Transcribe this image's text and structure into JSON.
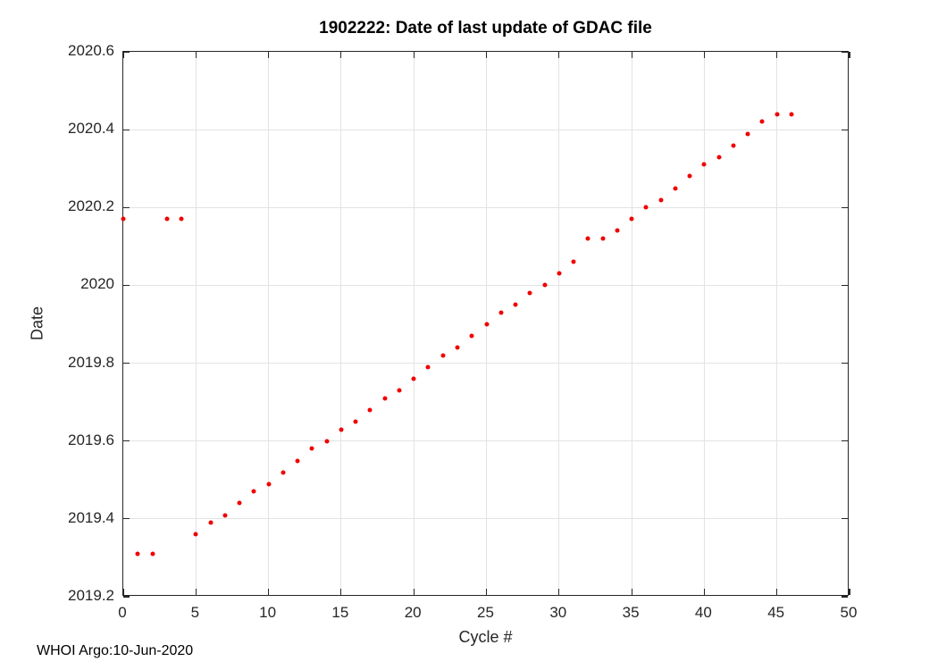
{
  "footer": "WHOI Argo:10-Jun-2020",
  "chart_data": {
    "type": "scatter",
    "title": "1902222: Date of last update of GDAC file",
    "xlabel": "Cycle #",
    "ylabel": "Date",
    "xlim": [
      0,
      50
    ],
    "ylim": [
      2019.2,
      2020.6
    ],
    "xticks": [
      0,
      5,
      10,
      15,
      20,
      25,
      30,
      35,
      40,
      45,
      50
    ],
    "xtick_labels": [
      "0",
      "5",
      "10",
      "15",
      "20",
      "25",
      "30",
      "35",
      "40",
      "45",
      "50"
    ],
    "yticks": [
      2019.2,
      2019.4,
      2019.6,
      2019.8,
      2020,
      2020.2,
      2020.4,
      2020.6
    ],
    "ytick_labels": [
      "2019.2",
      "2019.4",
      "2019.6",
      "2019.8",
      "2020",
      "2020.2",
      "2020.4",
      "2020.6"
    ],
    "grid": true,
    "legend": null,
    "marker_color": "#f10000",
    "axis_color": "#262626",
    "grid_color": "#e3e3e3",
    "x": [
      0,
      1,
      2,
      3,
      4,
      5,
      6,
      7,
      8,
      9,
      10,
      11,
      12,
      13,
      14,
      15,
      16,
      17,
      18,
      19,
      20,
      21,
      22,
      23,
      24,
      25,
      26,
      27,
      28,
      29,
      30,
      31,
      32,
      33,
      34,
      35,
      36,
      37,
      38,
      39,
      40,
      41,
      42,
      43,
      44,
      45,
      46
    ],
    "y": [
      2020.17,
      2019.31,
      2019.31,
      2020.17,
      2020.17,
      2019.36,
      2019.39,
      2019.41,
      2019.44,
      2019.47,
      2019.49,
      2019.52,
      2019.55,
      2019.58,
      2019.6,
      2019.63,
      2019.65,
      2019.68,
      2019.71,
      2019.73,
      2019.76,
      2019.79,
      2019.82,
      2019.84,
      2019.87,
      2019.9,
      2019.93,
      2019.95,
      2019.98,
      2020.0,
      2020.03,
      2020.06,
      2020.12,
      2020.12,
      2020.14,
      2020.17,
      2020.2,
      2020.22,
      2020.25,
      2020.28,
      2020.31,
      2020.33,
      2020.36,
      2020.39,
      2020.42,
      2020.44,
      2020.44
    ]
  }
}
